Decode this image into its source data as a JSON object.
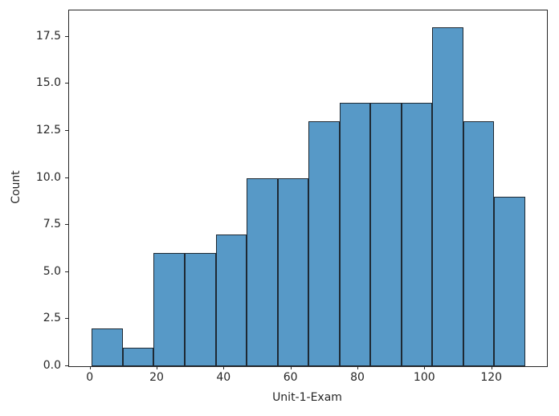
{
  "chart_data": {
    "type": "bar",
    "subtype": "histogram",
    "title": "",
    "xlabel": "Unit-1-Exam",
    "ylabel": "Count",
    "bin_edges": [
      0.4,
      9.65,
      18.9,
      28.15,
      37.4,
      46.65,
      55.9,
      65.15,
      74.4,
      83.65,
      92.9,
      102.15,
      111.4,
      120.65,
      129.9
    ],
    "counts": [
      2,
      1,
      6,
      6,
      7,
      10,
      10,
      13,
      14,
      14,
      14,
      18,
      13,
      9
    ],
    "xlim": [
      -6.4,
      136.4
    ],
    "ylim": [
      0,
      18.9
    ],
    "x_ticks": {
      "values": [
        0,
        20,
        40,
        60,
        80,
        100,
        120
      ],
      "labels": [
        "0",
        "20",
        "40",
        "60",
        "80",
        "100",
        "120"
      ]
    },
    "y_ticks": {
      "values": [
        0,
        2.5,
        5,
        7.5,
        10,
        12.5,
        15,
        17.5
      ],
      "labels": [
        "0.0",
        "2.5",
        "5.0",
        "7.5",
        "10.0",
        "12.5",
        "15.0",
        "17.5"
      ]
    },
    "grid": "off",
    "legend": "none",
    "colors": {
      "bar_fill": "#5799c7",
      "bar_edge": "#1e2933",
      "spine": "#262626",
      "text": "#262626",
      "background": "#ffffff"
    }
  }
}
